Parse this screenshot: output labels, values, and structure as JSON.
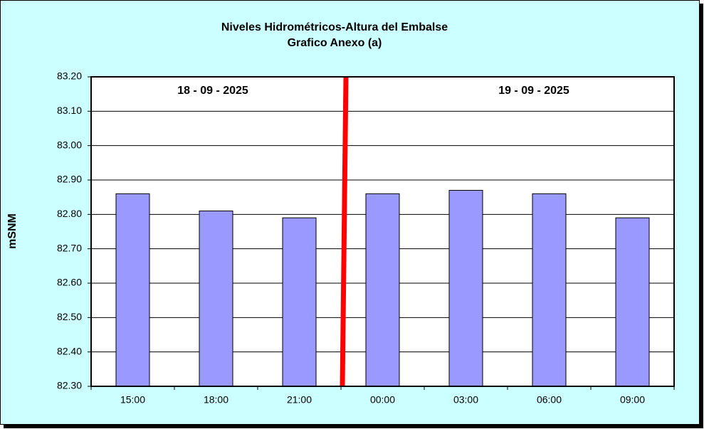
{
  "chart_data": {
    "type": "bar",
    "title": "Niveles Hidrométricos-Altura del Embalse",
    "subtitle": "Grafico Anexo (a)",
    "y_label": "mSNM",
    "annotations": [
      "18 - 09 - 2025",
      "19 - 09 - 2025"
    ],
    "categories": [
      "15:00",
      "18:00",
      "21:00",
      "00:00",
      "03:00",
      "06:00",
      "09:00"
    ],
    "values": [
      82.86,
      82.81,
      82.79,
      82.86,
      82.87,
      82.86,
      82.79
    ],
    "color": "#9999ff",
    "ylim": [
      82.3,
      83.2
    ],
    "yticks": [
      {
        "value": 82.3,
        "label": "82.30"
      },
      {
        "value": 82.4,
        "label": "82.40"
      },
      {
        "value": 82.5,
        "label": "82.50"
      },
      {
        "value": 82.6,
        "label": "82.60"
      },
      {
        "value": 82.7,
        "label": "82.70"
      },
      {
        "value": 82.8,
        "label": "82.80"
      },
      {
        "value": 82.9,
        "label": "82.90"
      },
      {
        "value": 83.0,
        "label": "83.00"
      },
      {
        "value": 83.1,
        "label": "83.10"
      },
      {
        "value": 83.2,
        "label": "83.20"
      }
    ],
    "grid": true
  }
}
